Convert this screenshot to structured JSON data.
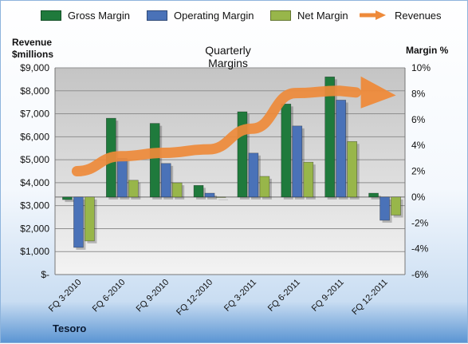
{
  "chart_data": {
    "type": "bar",
    "title": "Quarterly Margins",
    "footer_label": "Tesoro",
    "left_axis_label": [
      "Revenue",
      "$millions"
    ],
    "right_axis_label": "Margin %",
    "categories": [
      "FQ 3-2010",
      "FQ 6-2010",
      "FQ 9-2010",
      "FQ 12-2010",
      "FQ 3-2011",
      "FQ 6-2011",
      "FQ 9-2011",
      "FQ 12-2011"
    ],
    "left_ticks": [
      "$-",
      "$1,000",
      "$2,000",
      "$3,000",
      "$4,000",
      "$5,000",
      "$6,000",
      "$7,000",
      "$8,000",
      "$9,000"
    ],
    "right_ticks": [
      "-6%",
      "-4%",
      "-2%",
      "0%",
      "2%",
      "4%",
      "6%",
      "8%",
      "10%"
    ],
    "y_left_range": [
      0,
      9000
    ],
    "y_right_range": [
      -6,
      10
    ],
    "grid": true,
    "legend_position": "top",
    "series": [
      {
        "name": "Gross Margin",
        "axis": "right",
        "kind": "bar",
        "color": "#1f7a3c",
        "values": [
          -0.2,
          6.1,
          5.7,
          0.9,
          6.6,
          7.2,
          9.3,
          0.3
        ]
      },
      {
        "name": "Operating Margin",
        "axis": "right",
        "kind": "bar",
        "color": "#4a72b8",
        "values": [
          -3.9,
          3.0,
          2.6,
          0.3,
          3.4,
          5.5,
          7.5,
          -1.8
        ]
      },
      {
        "name": "Net Margin",
        "axis": "right",
        "kind": "bar",
        "color": "#98b64a",
        "values": [
          -3.4,
          1.3,
          1.1,
          0.0,
          1.6,
          2.7,
          4.3,
          -1.4
        ]
      },
      {
        "name": "Revenues",
        "axis": "left",
        "kind": "arrow",
        "color": "#ee8a3a",
        "values": [
          4500,
          5150,
          5300,
          5450,
          6350,
          7900,
          8000,
          7800
        ]
      }
    ]
  }
}
